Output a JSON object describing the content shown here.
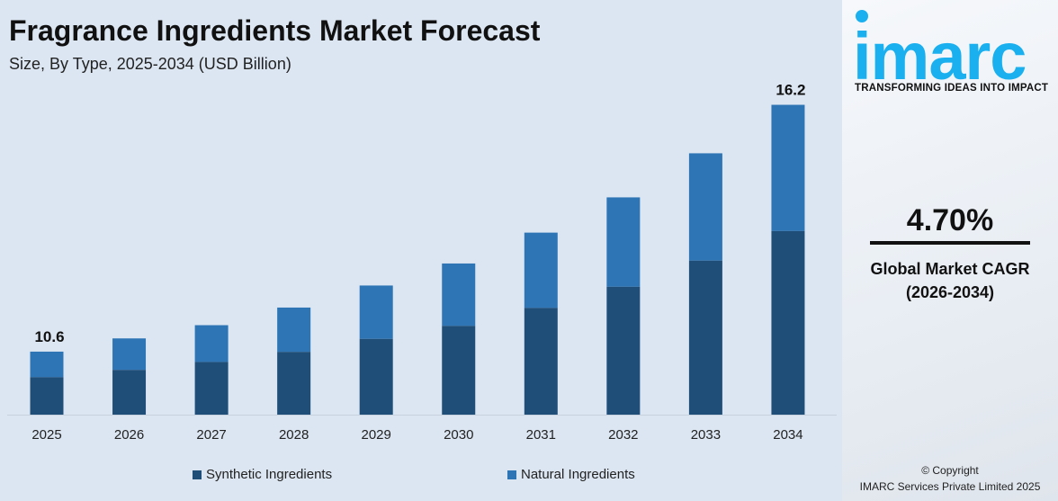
{
  "chart_data": {
    "type": "bar",
    "stacked": true,
    "title": "Fragrance Ingredients Market Forecast",
    "subtitle": "Size, By Type, 2025-2034 (USD Billion)",
    "categories": [
      "2025",
      "2026",
      "2027",
      "2028",
      "2029",
      "2030",
      "2031",
      "2032",
      "2033",
      "2034"
    ],
    "series": [
      {
        "name": "Synthetic Ingredients",
        "color": "#1f4e79",
        "values": [
          6.3,
          6.4,
          6.6,
          6.8,
          7.1,
          7.4,
          7.8,
          8.3,
          8.9,
          9.6
        ]
      },
      {
        "name": "Natural Ingredients",
        "color": "#2e75b6",
        "values": [
          4.3,
          4.5,
          4.6,
          4.8,
          5.0,
          5.2,
          5.5,
          5.8,
          6.2,
          6.6
        ]
      }
    ],
    "data_labels": {
      "2025": "10.6",
      "2034": "16.2"
    },
    "legend": "bottom",
    "grid": false
  },
  "brand": {
    "logo_text": "imarc",
    "tagline": "TRANSFORMING IDEAS INTO IMPACT",
    "color": "#1ab0f0"
  },
  "cagr": {
    "value": "4.70%",
    "label_line1": "Global Market CAGR",
    "label_line2": "(2026-2034)"
  },
  "copyright": {
    "line1": "© Copyright",
    "line2": "IMARC Services Private Limited 2025"
  }
}
